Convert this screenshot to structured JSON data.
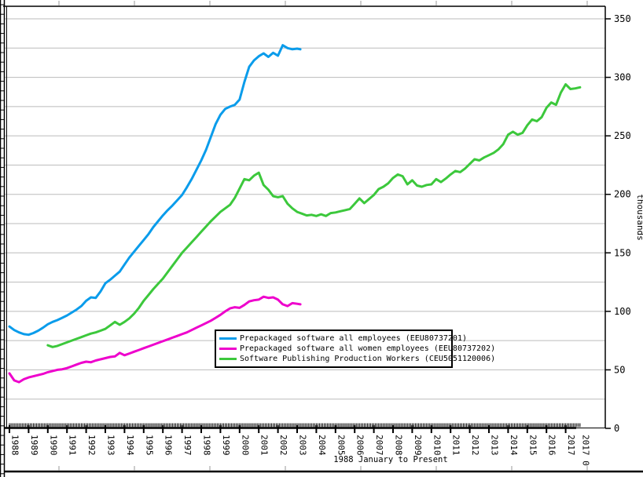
{
  "chart_data": {
    "type": "line",
    "title": "",
    "xlabel": "1988 January to Present",
    "ylabel": "thousands",
    "ylim": [
      0,
      350
    ],
    "xlim": [
      1988,
      2018
    ],
    "y_tick_step": 50,
    "y_grid_step": 25,
    "grid": "horizontal-only",
    "y_axis_side": "right",
    "legend_position": "inside-bottom-center",
    "y_ticks": [
      {
        "v": 0,
        "label": "0"
      },
      {
        "v": 50,
        "label": "50"
      },
      {
        "v": 100,
        "label": "100"
      },
      {
        "v": 150,
        "label": "150"
      },
      {
        "v": 200,
        "label": "200"
      },
      {
        "v": 250,
        "label": "250"
      },
      {
        "v": 300,
        "label": "300"
      },
      {
        "v": 350,
        "label": "350"
      }
    ],
    "x_ticks": [
      {
        "v": 1988,
        "label": "1988"
      },
      {
        "v": 1989,
        "label": "1989"
      },
      {
        "v": 1990,
        "label": "1990"
      },
      {
        "v": 1991,
        "label": "1991"
      },
      {
        "v": 1992,
        "label": "1992"
      },
      {
        "v": 1993,
        "label": "1993"
      },
      {
        "v": 1994,
        "label": "1994"
      },
      {
        "v": 1995,
        "label": "1995"
      },
      {
        "v": 1996,
        "label": "1996"
      },
      {
        "v": 1997,
        "label": "1997"
      },
      {
        "v": 1998,
        "label": "1998"
      },
      {
        "v": 1999,
        "label": "1999"
      },
      {
        "v": 2000,
        "label": "2000"
      },
      {
        "v": 2001,
        "label": "2001"
      },
      {
        "v": 2002,
        "label": "2002"
      },
      {
        "v": 2003,
        "label": "2003"
      },
      {
        "v": 2004,
        "label": "2004"
      },
      {
        "v": 2005,
        "label": "2005"
      },
      {
        "v": 2006,
        "label": "2006"
      },
      {
        "v": 2007,
        "label": "2007"
      },
      {
        "v": 2008,
        "label": "2008"
      },
      {
        "v": 2009,
        "label": "2009"
      },
      {
        "v": 2010,
        "label": "2010"
      },
      {
        "v": 2011,
        "label": "2011"
      },
      {
        "v": 2012,
        "label": "2012"
      },
      {
        "v": 2013,
        "label": "2013"
      },
      {
        "v": 2014,
        "label": "2014"
      },
      {
        "v": 2015,
        "label": "2015"
      },
      {
        "v": 2016,
        "label": "2016"
      },
      {
        "v": 2017,
        "label": "2017"
      },
      {
        "v": 2017.75,
        "label": "2017 0"
      }
    ],
    "minor_x_ticks": {
      "start": 1988.0,
      "end": 2017.75,
      "step_months": 1
    },
    "colors": {
      "grid": "#bbbbbb",
      "axis": "#000000",
      "background": "#ffffff"
    },
    "series": [
      {
        "name": "Prepackaged software all employees (EEU80737201)",
        "color": "#0a9ceb",
        "points": [
          [
            1988.0,
            87
          ],
          [
            1988.25,
            84
          ],
          [
            1988.5,
            82
          ],
          [
            1988.75,
            80.5
          ],
          [
            1989.0,
            80
          ],
          [
            1989.25,
            81.5
          ],
          [
            1989.5,
            83.5
          ],
          [
            1989.75,
            86
          ],
          [
            1990.0,
            89
          ],
          [
            1990.25,
            91
          ],
          [
            1990.5,
            92.5
          ],
          [
            1990.75,
            94.5
          ],
          [
            1991.0,
            96.5
          ],
          [
            1991.25,
            99
          ],
          [
            1991.5,
            101.5
          ],
          [
            1991.75,
            104.5
          ],
          [
            1992.0,
            109
          ],
          [
            1992.25,
            112
          ],
          [
            1992.5,
            111.5
          ],
          [
            1992.75,
            117
          ],
          [
            1993.0,
            124
          ],
          [
            1993.25,
            127
          ],
          [
            1993.5,
            130.5
          ],
          [
            1993.75,
            134
          ],
          [
            1994.0,
            140
          ],
          [
            1994.25,
            146
          ],
          [
            1994.5,
            151
          ],
          [
            1994.75,
            156
          ],
          [
            1995.0,
            161
          ],
          [
            1995.25,
            166
          ],
          [
            1995.5,
            172
          ],
          [
            1995.75,
            177
          ],
          [
            1996.0,
            182
          ],
          [
            1996.25,
            186.5
          ],
          [
            1996.5,
            190.5
          ],
          [
            1996.75,
            195
          ],
          [
            1997.0,
            199.5
          ],
          [
            1997.25,
            206
          ],
          [
            1997.5,
            213
          ],
          [
            1997.75,
            221
          ],
          [
            1998.0,
            229
          ],
          [
            1998.25,
            238
          ],
          [
            1998.5,
            249
          ],
          [
            1998.75,
            260
          ],
          [
            1999.0,
            268
          ],
          [
            1999.25,
            273
          ],
          [
            1999.5,
            275
          ],
          [
            1999.75,
            276.5
          ],
          [
            2000.0,
            281
          ],
          [
            2000.25,
            296
          ],
          [
            2000.5,
            309
          ],
          [
            2000.75,
            314.5
          ],
          [
            2001.0,
            318
          ],
          [
            2001.25,
            320.5
          ],
          [
            2001.5,
            317.5
          ],
          [
            2001.75,
            321
          ],
          [
            2002.0,
            318.5
          ],
          [
            2002.25,
            327.5
          ],
          [
            2002.5,
            325
          ],
          [
            2002.75,
            324
          ],
          [
            2003.0,
            324.5
          ],
          [
            2003.17,
            324
          ]
        ]
      },
      {
        "name": "Prepackaged software all women employees (EEU80737202)",
        "color": "#ee00cc",
        "points": [
          [
            1988.0,
            47
          ],
          [
            1988.25,
            41
          ],
          [
            1988.5,
            39.5
          ],
          [
            1988.75,
            42
          ],
          [
            1989.0,
            43.5
          ],
          [
            1989.25,
            44.5
          ],
          [
            1989.5,
            45.5
          ],
          [
            1989.75,
            46.5
          ],
          [
            1990.0,
            48
          ],
          [
            1990.25,
            49
          ],
          [
            1990.5,
            50
          ],
          [
            1990.75,
            50.5
          ],
          [
            1991.0,
            51.5
          ],
          [
            1991.25,
            53
          ],
          [
            1991.5,
            54.5
          ],
          [
            1991.75,
            56
          ],
          [
            1992.0,
            57
          ],
          [
            1992.25,
            56.5
          ],
          [
            1992.5,
            58
          ],
          [
            1992.75,
            59
          ],
          [
            1993.0,
            60
          ],
          [
            1993.25,
            61
          ],
          [
            1993.5,
            61.5
          ],
          [
            1993.75,
            64.5
          ],
          [
            1994.0,
            62.5
          ],
          [
            1994.25,
            64
          ],
          [
            1994.5,
            65.5
          ],
          [
            1994.75,
            67
          ],
          [
            1995.0,
            68.5
          ],
          [
            1995.25,
            70
          ],
          [
            1995.5,
            71.5
          ],
          [
            1995.75,
            73
          ],
          [
            1996.0,
            74.5
          ],
          [
            1996.25,
            76
          ],
          [
            1996.5,
            77.5
          ],
          [
            1996.75,
            79
          ],
          [
            1997.0,
            80.5
          ],
          [
            1997.25,
            82
          ],
          [
            1997.5,
            84
          ],
          [
            1997.75,
            86
          ],
          [
            1998.0,
            88
          ],
          [
            1998.25,
            90
          ],
          [
            1998.5,
            92
          ],
          [
            1998.75,
            94.5
          ],
          [
            1999.0,
            97
          ],
          [
            1999.25,
            100
          ],
          [
            1999.5,
            102.5
          ],
          [
            1999.75,
            103.5
          ],
          [
            2000.0,
            103
          ],
          [
            2000.25,
            105.5
          ],
          [
            2000.5,
            108.5
          ],
          [
            2000.75,
            109.5
          ],
          [
            2001.0,
            110
          ],
          [
            2001.25,
            112.5
          ],
          [
            2001.5,
            111.5
          ],
          [
            2001.75,
            112
          ],
          [
            2002.0,
            110
          ],
          [
            2002.25,
            106
          ],
          [
            2002.5,
            104.5
          ],
          [
            2002.75,
            107
          ],
          [
            2003.0,
            106.5
          ],
          [
            2003.17,
            106
          ]
        ]
      },
      {
        "name": "Software Publishing Production Workers (CEU5051120006)",
        "color": "#3cc83c",
        "points": [
          [
            1990.0,
            71
          ],
          [
            1990.25,
            69.5
          ],
          [
            1990.5,
            70.5
          ],
          [
            1990.75,
            72
          ],
          [
            1991.0,
            73.5
          ],
          [
            1991.25,
            75
          ],
          [
            1991.5,
            76.5
          ],
          [
            1991.75,
            78
          ],
          [
            1992.0,
            79.5
          ],
          [
            1992.25,
            81
          ],
          [
            1992.5,
            82
          ],
          [
            1992.75,
            83.5
          ],
          [
            1993.0,
            85
          ],
          [
            1993.25,
            88
          ],
          [
            1993.5,
            91
          ],
          [
            1993.75,
            88.5
          ],
          [
            1994.0,
            91
          ],
          [
            1994.25,
            94
          ],
          [
            1994.5,
            98
          ],
          [
            1994.75,
            103
          ],
          [
            1995.0,
            109
          ],
          [
            1995.25,
            114
          ],
          [
            1995.5,
            119
          ],
          [
            1995.75,
            123.5
          ],
          [
            1996.0,
            128
          ],
          [
            1996.25,
            133.5
          ],
          [
            1996.5,
            139
          ],
          [
            1996.75,
            144.5
          ],
          [
            1997.0,
            150
          ],
          [
            1997.25,
            154.5
          ],
          [
            1997.5,
            159
          ],
          [
            1997.75,
            163.5
          ],
          [
            1998.0,
            168
          ],
          [
            1998.25,
            172.5
          ],
          [
            1998.5,
            177
          ],
          [
            1998.75,
            181
          ],
          [
            1999.0,
            185
          ],
          [
            1999.25,
            188
          ],
          [
            1999.5,
            191
          ],
          [
            1999.75,
            197
          ],
          [
            2000.0,
            205
          ],
          [
            2000.25,
            213
          ],
          [
            2000.5,
            212
          ],
          [
            2000.75,
            216
          ],
          [
            2001.0,
            218.5
          ],
          [
            2001.25,
            208
          ],
          [
            2001.5,
            204
          ],
          [
            2001.75,
            198.5
          ],
          [
            2002.0,
            197.5
          ],
          [
            2002.25,
            198.5
          ],
          [
            2002.5,
            192
          ],
          [
            2002.75,
            188
          ],
          [
            2003.0,
            185
          ],
          [
            2003.25,
            183.5
          ],
          [
            2003.5,
            182
          ],
          [
            2003.75,
            182.5
          ],
          [
            2004.0,
            181.5
          ],
          [
            2004.25,
            183
          ],
          [
            2004.5,
            181.5
          ],
          [
            2004.75,
            184
          ],
          [
            2005.0,
            184.5
          ],
          [
            2005.25,
            185.5
          ],
          [
            2005.5,
            186.5
          ],
          [
            2005.75,
            187.5
          ],
          [
            2006.0,
            192
          ],
          [
            2006.25,
            196.5
          ],
          [
            2006.5,
            192.5
          ],
          [
            2006.75,
            196
          ],
          [
            2007.0,
            199.5
          ],
          [
            2007.25,
            204.5
          ],
          [
            2007.5,
            206.5
          ],
          [
            2007.75,
            209.5
          ],
          [
            2008.0,
            214
          ],
          [
            2008.25,
            217
          ],
          [
            2008.5,
            215.5
          ],
          [
            2008.75,
            208.5
          ],
          [
            2009.0,
            212
          ],
          [
            2009.25,
            207.5
          ],
          [
            2009.5,
            206.5
          ],
          [
            2009.75,
            208
          ],
          [
            2010.0,
            208.5
          ],
          [
            2010.25,
            213
          ],
          [
            2010.5,
            210.5
          ],
          [
            2010.75,
            213.5
          ],
          [
            2011.0,
            217
          ],
          [
            2011.25,
            220
          ],
          [
            2011.5,
            219
          ],
          [
            2011.75,
            222
          ],
          [
            2012.0,
            226
          ],
          [
            2012.25,
            230
          ],
          [
            2012.5,
            229
          ],
          [
            2012.75,
            231.5
          ],
          [
            2013.0,
            233.5
          ],
          [
            2013.25,
            235.5
          ],
          [
            2013.5,
            238.5
          ],
          [
            2013.75,
            243
          ],
          [
            2014.0,
            251
          ],
          [
            2014.25,
            253.5
          ],
          [
            2014.5,
            251
          ],
          [
            2014.75,
            252.5
          ],
          [
            2015.0,
            259
          ],
          [
            2015.25,
            264
          ],
          [
            2015.5,
            262.5
          ],
          [
            2015.75,
            266
          ],
          [
            2016.0,
            274
          ],
          [
            2016.25,
            278.5
          ],
          [
            2016.5,
            276.5
          ],
          [
            2016.75,
            287
          ],
          [
            2017.0,
            294
          ],
          [
            2017.25,
            290
          ],
          [
            2017.5,
            290.5
          ],
          [
            2017.75,
            291.5
          ]
        ]
      }
    ]
  },
  "legend": {
    "entries": [
      "Prepackaged software all employees (EEU80737201)",
      "Prepackaged software all women employees (EEU80737202)",
      "Software Publishing Production Workers (CEU5051120006)"
    ]
  }
}
